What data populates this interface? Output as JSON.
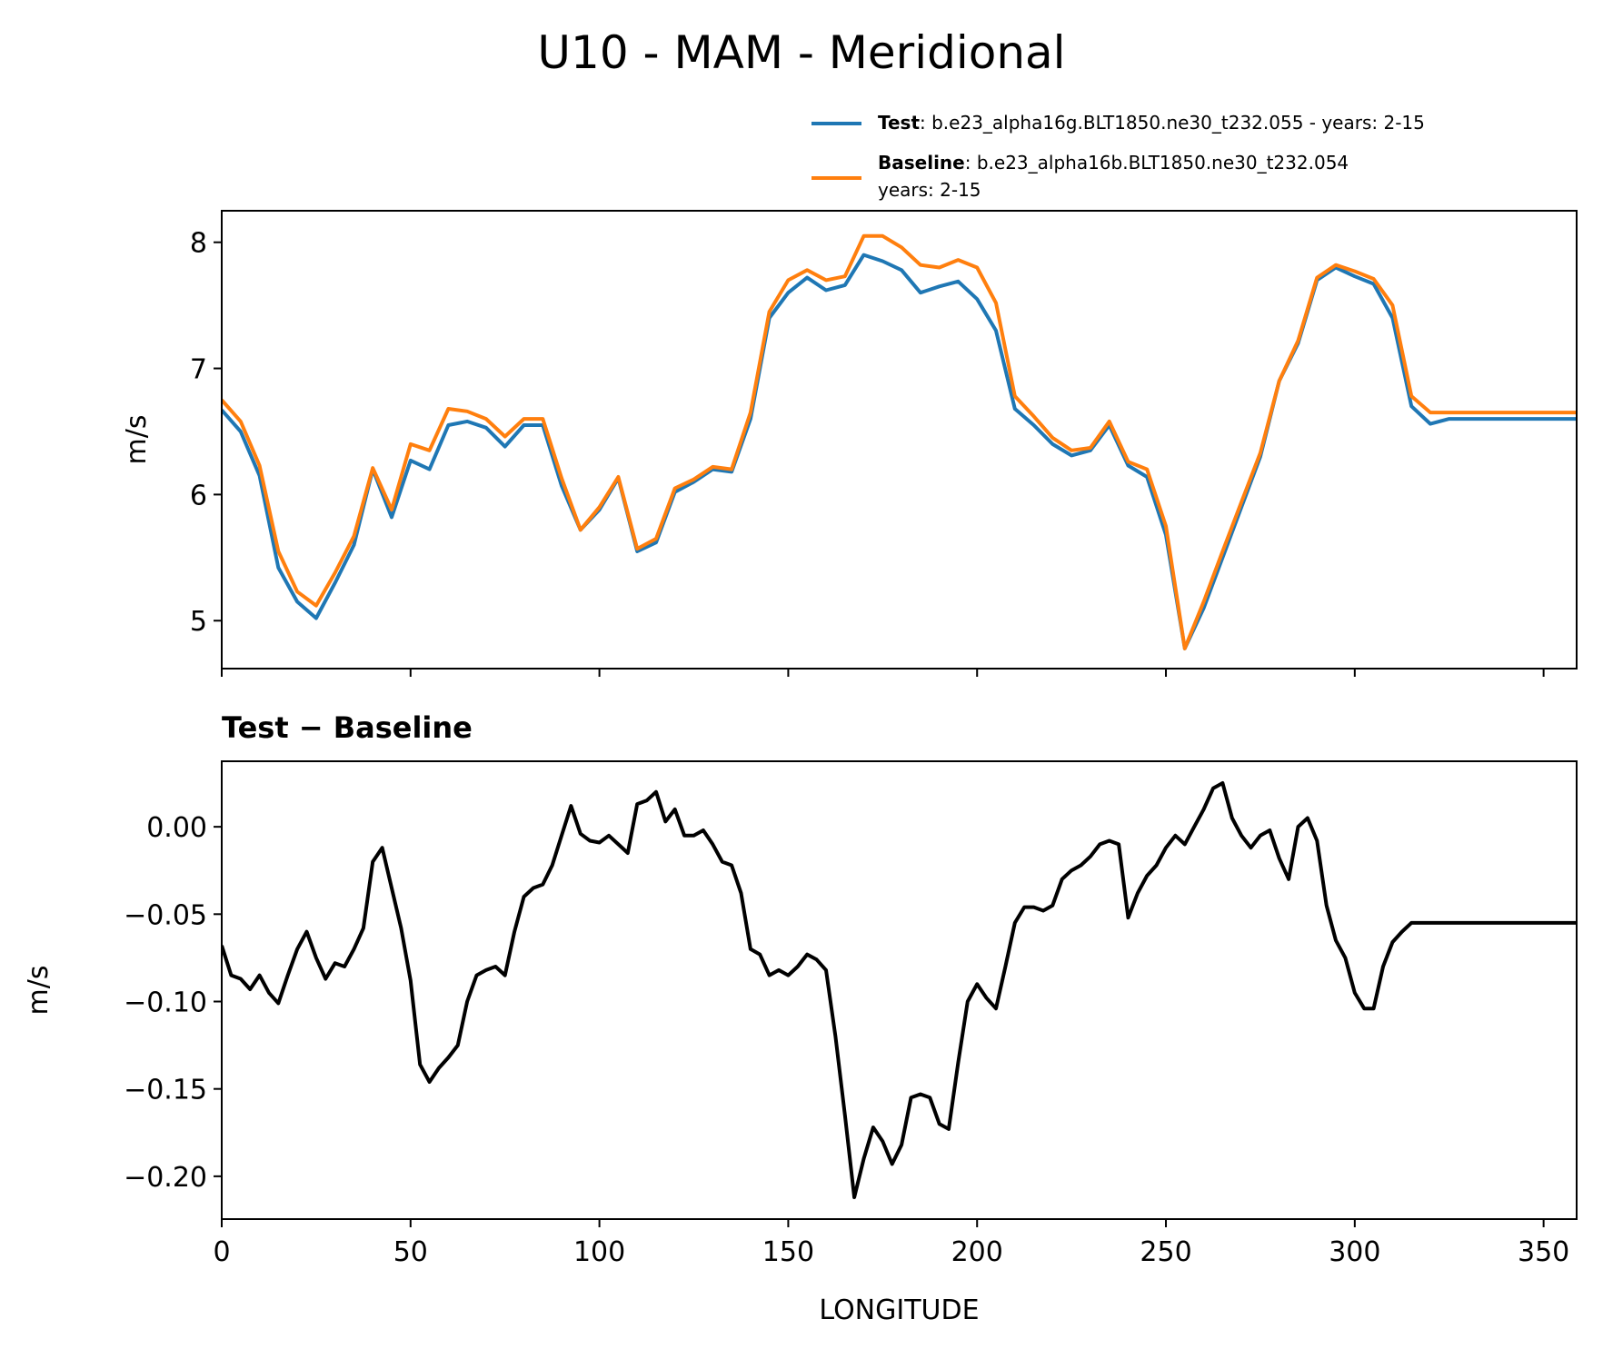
{
  "title": "U10 - MAM - Meridional",
  "legend": {
    "test_label": "Test",
    "test_text": ": b.e23_alpha16g.BLT1850.ne30_t232.055 - years: 2-15",
    "baseline_label": "Baseline",
    "baseline_text": ": b.e23_alpha16b.BLT1850.ne30_t232.054",
    "baseline_text2": "years: 2-15"
  },
  "colors": {
    "test": "#1f77b4",
    "baseline": "#ff7f0e",
    "diff": "#000000"
  },
  "chart_data": [
    {
      "type": "line",
      "title": "",
      "xlabel": "",
      "ylabel": "m/s",
      "xlim": [
        0,
        358.75
      ],
      "ylim": [
        4.62,
        8.25
      ],
      "yticks": [
        5,
        6,
        7,
        8
      ],
      "ytick_labels": [
        "5",
        "6",
        "7",
        "8"
      ],
      "xticks": [
        0,
        50,
        100,
        150,
        200,
        250,
        300,
        350
      ],
      "series": [
        {
          "name": "Test",
          "x": [
            0,
            5,
            10,
            15,
            20,
            25,
            30,
            35,
            40,
            45,
            50,
            55,
            60,
            65,
            70,
            75,
            80,
            85,
            90,
            95,
            100,
            105,
            110,
            115,
            120,
            125,
            130,
            135,
            140,
            145,
            150,
            155,
            160,
            165,
            170,
            175,
            180,
            185,
            190,
            195,
            200,
            205,
            210,
            215,
            220,
            225,
            230,
            235,
            240,
            245,
            250,
            255,
            260,
            265,
            270,
            275,
            280,
            285,
            290,
            295,
            300,
            305,
            310,
            315,
            320,
            325,
            330,
            335,
            340,
            345,
            350,
            355,
            358.75
          ],
          "values": [
            6.67,
            6.5,
            6.15,
            5.42,
            5.15,
            5.02,
            5.3,
            5.6,
            6.2,
            5.82,
            6.27,
            6.2,
            6.55,
            6.58,
            6.53,
            6.38,
            6.55,
            6.55,
            6.07,
            5.72,
            5.88,
            6.13,
            5.55,
            5.62,
            6.02,
            6.1,
            6.2,
            6.18,
            6.6,
            7.4,
            7.6,
            7.72,
            7.62,
            7.66,
            7.9,
            7.85,
            7.78,
            7.6,
            7.65,
            7.69,
            7.55,
            7.3,
            6.68,
            6.55,
            6.4,
            6.31,
            6.35,
            6.55,
            6.23,
            6.14,
            5.68,
            4.78,
            5.1,
            5.5,
            5.9,
            6.3,
            6.9,
            7.2,
            7.7,
            7.8,
            7.73,
            7.67,
            7.4,
            6.7,
            6.56,
            6.6,
            6.6,
            6.6,
            6.6,
            6.6,
            6.6,
            6.6,
            6.6
          ]
        },
        {
          "name": "Baseline",
          "x": [
            0,
            5,
            10,
            15,
            20,
            25,
            30,
            35,
            40,
            45,
            50,
            55,
            60,
            65,
            70,
            75,
            80,
            85,
            90,
            95,
            100,
            105,
            110,
            115,
            120,
            125,
            130,
            135,
            140,
            145,
            150,
            155,
            160,
            165,
            170,
            175,
            180,
            185,
            190,
            195,
            200,
            205,
            210,
            215,
            220,
            225,
            230,
            235,
            240,
            245,
            250,
            255,
            260,
            265,
            270,
            275,
            280,
            285,
            290,
            295,
            300,
            305,
            310,
            315,
            320,
            325,
            330,
            335,
            340,
            345,
            350,
            355,
            358.75
          ],
          "values": [
            6.75,
            6.58,
            6.23,
            5.55,
            5.23,
            5.12,
            5.38,
            5.67,
            6.21,
            5.88,
            6.4,
            6.35,
            6.68,
            6.66,
            6.6,
            6.46,
            6.6,
            6.6,
            6.13,
            5.72,
            5.9,
            6.14,
            5.57,
            5.65,
            6.05,
            6.12,
            6.22,
            6.2,
            6.65,
            7.45,
            7.7,
            7.78,
            7.7,
            7.73,
            8.05,
            8.05,
            7.96,
            7.82,
            7.8,
            7.86,
            7.8,
            7.52,
            6.78,
            6.62,
            6.45,
            6.35,
            6.37,
            6.58,
            6.26,
            6.2,
            5.75,
            4.78,
            5.15,
            5.55,
            5.94,
            6.33,
            6.9,
            7.22,
            7.72,
            7.82,
            7.77,
            7.71,
            7.5,
            6.78,
            6.65,
            6.65,
            6.65,
            6.65,
            6.65,
            6.65,
            6.65,
            6.65,
            6.65
          ]
        }
      ]
    },
    {
      "type": "line",
      "title": "Test − Baseline",
      "xlabel": "LONGITUDE",
      "ylabel": "m/s",
      "xlim": [
        0,
        358.75
      ],
      "ylim": [
        -0.2245,
        0.0375
      ],
      "yticks": [
        0.0,
        -0.05,
        -0.1,
        -0.15,
        -0.2
      ],
      "ytick_labels": [
        "0.00",
        "−0.05",
        "−0.10",
        "−0.15",
        "−0.20"
      ],
      "xticks": [
        0,
        50,
        100,
        150,
        200,
        250,
        300,
        350
      ],
      "xtick_labels": [
        "0",
        "50",
        "100",
        "150",
        "200",
        "250",
        "300",
        "350"
      ],
      "series": [
        {
          "name": "Test − Baseline",
          "x": [
            0,
            2.5,
            5,
            7.5,
            10,
            12.5,
            15,
            17.5,
            20,
            22.5,
            25,
            27.5,
            30,
            32.5,
            35,
            37.5,
            40,
            42.5,
            45,
            47.5,
            50,
            52.5,
            55,
            57.5,
            60,
            62.5,
            65,
            67.5,
            70,
            72.5,
            75,
            77.5,
            80,
            82.5,
            85,
            87.5,
            90,
            92.5,
            95,
            97.5,
            100,
            102.5,
            105,
            107.5,
            110,
            112.5,
            115,
            117.5,
            120,
            122.5,
            125,
            127.5,
            130,
            132.5,
            135,
            137.5,
            140,
            142.5,
            145,
            147.5,
            150,
            152.5,
            155,
            157.5,
            160,
            162.5,
            165,
            167.5,
            170,
            172.5,
            175,
            177.5,
            180,
            182.5,
            185,
            187.5,
            190,
            192.5,
            195,
            197.5,
            200,
            202.5,
            205,
            207.5,
            210,
            212.5,
            215,
            217.5,
            220,
            222.5,
            225,
            227.5,
            230,
            232.5,
            235,
            237.5,
            240,
            242.5,
            245,
            247.5,
            250,
            252.5,
            255,
            257.5,
            260,
            262.5,
            265,
            267.5,
            270,
            272.5,
            275,
            277.5,
            280,
            282.5,
            285,
            287.5,
            290,
            292.5,
            295,
            297.5,
            300,
            302.5,
            305,
            307.5,
            310,
            312.5,
            315,
            317.5,
            320,
            322.5,
            325,
            327.5,
            330,
            332.5,
            335,
            337.5,
            340,
            342.5,
            345,
            347.5,
            350,
            352.5,
            355,
            357.5,
            358.75
          ],
          "values": [
            -0.068,
            -0.085,
            -0.087,
            -0.093,
            -0.085,
            -0.095,
            -0.101,
            -0.085,
            -0.07,
            -0.06,
            -0.075,
            -0.087,
            -0.078,
            -0.08,
            -0.07,
            -0.058,
            -0.02,
            -0.012,
            -0.035,
            -0.058,
            -0.088,
            -0.136,
            -0.146,
            -0.138,
            -0.132,
            -0.125,
            -0.1,
            -0.085,
            -0.082,
            -0.08,
            -0.085,
            -0.06,
            -0.04,
            -0.035,
            -0.033,
            -0.022,
            -0.005,
            0.012,
            -0.004,
            -0.008,
            -0.009,
            -0.005,
            -0.01,
            -0.015,
            0.013,
            0.015,
            0.02,
            0.003,
            0.01,
            -0.005,
            -0.005,
            -0.002,
            -0.01,
            -0.02,
            -0.022,
            -0.038,
            -0.07,
            -0.073,
            -0.085,
            -0.082,
            -0.085,
            -0.08,
            -0.073,
            -0.076,
            -0.082,
            -0.12,
            -0.165,
            -0.212,
            -0.19,
            -0.172,
            -0.18,
            -0.193,
            -0.182,
            -0.155,
            -0.153,
            -0.155,
            -0.17,
            -0.173,
            -0.135,
            -0.1,
            -0.09,
            -0.098,
            -0.104,
            -0.08,
            -0.055,
            -0.046,
            -0.046,
            -0.048,
            -0.045,
            -0.03,
            -0.025,
            -0.022,
            -0.017,
            -0.01,
            -0.008,
            -0.01,
            -0.052,
            -0.038,
            -0.028,
            -0.022,
            -0.012,
            -0.005,
            -0.01,
            0.0,
            0.01,
            0.022,
            0.025,
            0.005,
            -0.005,
            -0.012,
            -0.005,
            -0.002,
            -0.018,
            -0.03,
            0.0,
            0.005,
            -0.008,
            -0.045,
            -0.065,
            -0.075,
            -0.095,
            -0.104,
            -0.104,
            -0.08,
            -0.066,
            -0.06,
            -0.055,
            -0.055,
            -0.055,
            -0.055,
            -0.055,
            -0.055,
            -0.055,
            -0.055,
            -0.055,
            -0.055,
            -0.055,
            -0.055,
            -0.055,
            -0.055,
            -0.055,
            -0.055,
            -0.055,
            -0.055,
            -0.055
          ]
        }
      ]
    }
  ]
}
